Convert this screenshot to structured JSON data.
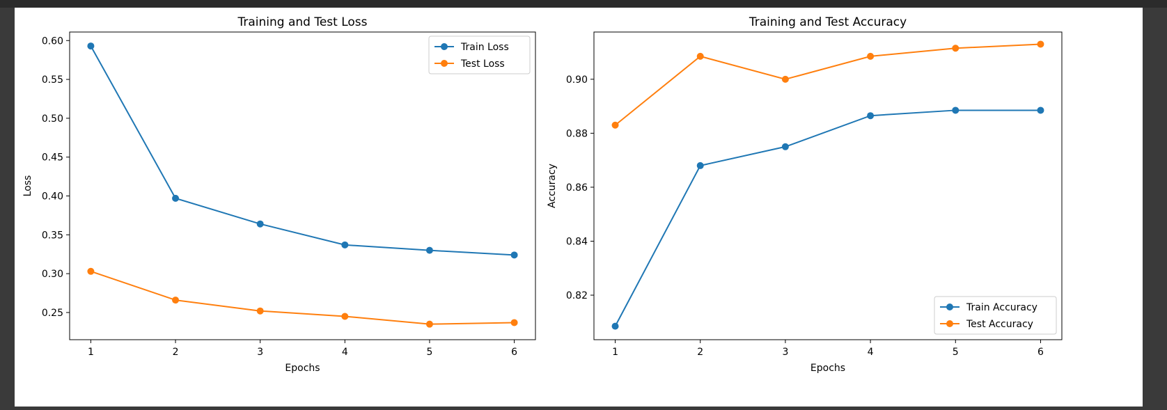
{
  "chart_data": [
    {
      "type": "line",
      "title": "Training and Test Loss",
      "xlabel": "Epochs",
      "ylabel": "Loss",
      "x": [
        1,
        2,
        3,
        4,
        5,
        6
      ],
      "xticks": [
        "1",
        "2",
        "3",
        "4",
        "5",
        "6"
      ],
      "xlim": [
        0.75,
        6.25
      ],
      "ylim": [
        0.215,
        0.611
      ],
      "yticks": [
        "0.25",
        "0.30",
        "0.35",
        "0.40",
        "0.45",
        "0.50",
        "0.55",
        "0.60"
      ],
      "grid": false,
      "legend_position": "top-right",
      "series": [
        {
          "name": "Train Loss",
          "color": "#1f77b4",
          "values": [
            0.593,
            0.397,
            0.364,
            0.337,
            0.33,
            0.324
          ]
        },
        {
          "name": "Test Loss",
          "color": "#ff7f0e",
          "values": [
            0.303,
            0.266,
            0.252,
            0.245,
            0.235,
            0.237
          ]
        }
      ]
    },
    {
      "type": "line",
      "title": "Training and Test Accuracy",
      "xlabel": "Epochs",
      "ylabel": "Accuracy",
      "x": [
        1,
        2,
        3,
        4,
        5,
        6
      ],
      "xticks": [
        "1",
        "2",
        "3",
        "4",
        "5",
        "6"
      ],
      "xlim": [
        0.75,
        6.25
      ],
      "ylim": [
        0.8035,
        0.9175
      ],
      "yticks": [
        "0.82",
        "0.84",
        "0.86",
        "0.88",
        "0.90"
      ],
      "grid": false,
      "legend_position": "bottom-right",
      "series": [
        {
          "name": "Train Accuracy",
          "color": "#1f77b4",
          "values": [
            0.8085,
            0.868,
            0.875,
            0.8865,
            0.8885,
            0.8885
          ]
        },
        {
          "name": "Test Accuracy",
          "color": "#ff7f0e",
          "values": [
            0.883,
            0.9085,
            0.9,
            0.9085,
            0.9115,
            0.913
          ]
        }
      ]
    }
  ]
}
